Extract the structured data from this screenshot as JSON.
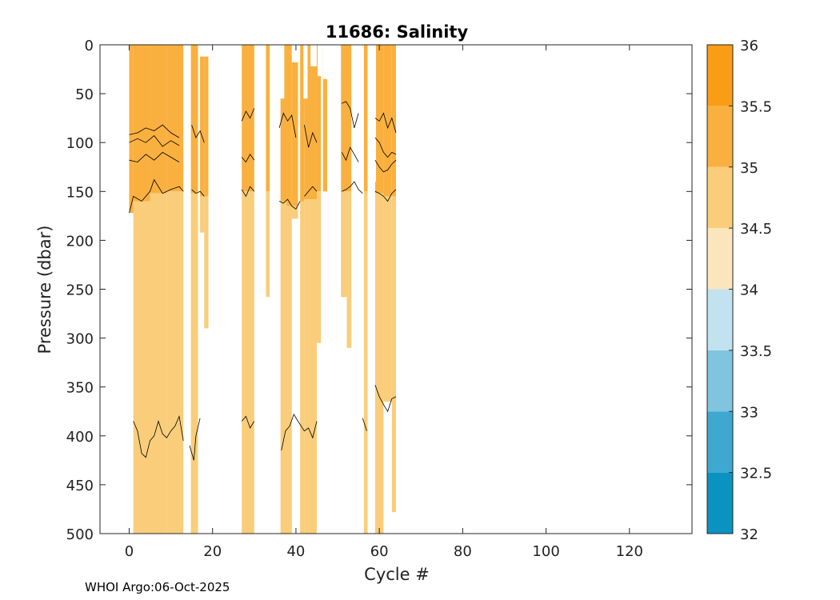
{
  "chart_data": {
    "type": "heatmap",
    "title": "11686:  Salinity",
    "xlabel": "Cycle #",
    "ylabel": "Pressure (dbar)",
    "xlim": [
      -7,
      135
    ],
    "ylim": [
      0,
      500
    ],
    "y_reversed": true,
    "x_ticks": [
      0,
      20,
      40,
      60,
      80,
      100,
      120
    ],
    "y_ticks": [
      0,
      50,
      100,
      150,
      200,
      250,
      300,
      350,
      400,
      450,
      500
    ],
    "colorbar": {
      "levels": [
        32,
        32.5,
        33,
        33.5,
        34,
        34.5,
        35,
        35.5,
        36
      ],
      "tick_labels": [
        "32",
        "32.5",
        "33",
        "33.5",
        "34",
        "34.5",
        "35",
        "35.5",
        "36"
      ],
      "colors": [
        "#0a93c1",
        "#3fa8d0",
        "#80c4df",
        "#c1e2ee",
        "#fbe5bc",
        "#f9cd7a",
        "#f9b03e",
        "#f99c16"
      ]
    },
    "profiles": [
      {
        "x0": 0,
        "x1": 1,
        "top": 0,
        "bottom": 172,
        "top_class": 6,
        "low_class": 5,
        "boundary": 172
      },
      {
        "x0": 1,
        "x1": 5,
        "top": 0,
        "bottom": 500,
        "top_class": 6,
        "low_class": 5,
        "boundary": 160
      },
      {
        "x0": 5,
        "x1": 9,
        "top": 0,
        "bottom": 500,
        "top_class": 6,
        "low_class": 5,
        "boundary": 152
      },
      {
        "x0": 9,
        "x1": 13,
        "top": 0,
        "bottom": 500,
        "top_class": 6,
        "low_class": 5,
        "boundary": 150
      },
      {
        "x0": 14.8,
        "x1": 16.5,
        "top": 0,
        "bottom": 500,
        "top_class": 6,
        "low_class": 5,
        "boundary": 152
      },
      {
        "x0": 17,
        "x1": 18,
        "top": 0,
        "bottom": 192,
        "top_class": 6,
        "low_class": 5,
        "boundary": 155
      },
      {
        "x0": 18,
        "x1": 19,
        "top": 0,
        "bottom": 290,
        "top_class": 6,
        "low_class": 5,
        "boundary": 155
      },
      {
        "x0": 27,
        "x1": 30,
        "top": 0,
        "bottom": 500,
        "top_class": 6,
        "low_class": 5,
        "boundary": 150
      },
      {
        "x0": 32.8,
        "x1": 33.7,
        "top": 0,
        "bottom": 258,
        "top_class": 6,
        "low_class": 5,
        "boundary": 150
      },
      {
        "x0": 36.3,
        "x1": 37.8,
        "top": 0,
        "bottom": 500,
        "top_class": 6,
        "low_class": 5,
        "boundary": 160
      },
      {
        "x0": 37.8,
        "x1": 39,
        "top": 0,
        "bottom": 500,
        "top_class": 6,
        "low_class": 5,
        "boundary": 165
      },
      {
        "x0": 39,
        "x1": 40.5,
        "top": 0,
        "bottom": 178,
        "top_class": 6,
        "low_class": 5,
        "boundary": 165
      },
      {
        "x0": 41,
        "x1": 42,
        "top": 0,
        "bottom": 500,
        "top_class": 6,
        "low_class": 5,
        "boundary": 160
      },
      {
        "x0": 42,
        "x1": 45,
        "top": 0,
        "bottom": 500,
        "top_class": 6,
        "low_class": 5,
        "boundary": 158
      },
      {
        "x0": 45,
        "x1": 46,
        "top": 0,
        "bottom": 305,
        "top_class": 6,
        "low_class": 5,
        "boundary": 150
      },
      {
        "x0": 46.5,
        "x1": 47.5,
        "top": 0,
        "bottom": 150,
        "top_class": 6,
        "low_class": 5,
        "boundary": 150
      },
      {
        "x0": 50.8,
        "x1": 52.2,
        "top": 0,
        "bottom": 258,
        "top_class": 6,
        "low_class": 5,
        "boundary": 150
      },
      {
        "x0": 52.2,
        "x1": 53.3,
        "top": 0,
        "bottom": 310,
        "top_class": 6,
        "low_class": 5,
        "boundary": 150
      },
      {
        "x0": 56.3,
        "x1": 57.2,
        "top": 0,
        "bottom": 500,
        "top_class": 6,
        "low_class": 5,
        "boundary": 150
      },
      {
        "x0": 59,
        "x1": 61,
        "top": 0,
        "bottom": 500,
        "top_class": 6,
        "low_class": 5,
        "boundary": 152
      },
      {
        "x0": 61,
        "x1": 63,
        "top": 0,
        "bottom": 365,
        "top_class": 6,
        "low_class": 5,
        "boundary": 155
      },
      {
        "x0": 63,
        "x1": 64,
        "top": 0,
        "bottom": 478,
        "top_class": 6,
        "low_class": 5,
        "boundary": 155
      }
    ],
    "white_gaps": [
      {
        "x0": 17,
        "x1": 19,
        "top": 0,
        "bottom": 12
      },
      {
        "x0": 39,
        "x1": 41,
        "top": 0,
        "bottom": 18
      },
      {
        "x0": 43.5,
        "x1": 45,
        "top": 0,
        "bottom": 22
      },
      {
        "x0": 46.5,
        "x1": 47.5,
        "top": 0,
        "bottom": 35
      },
      {
        "x0": 36.2,
        "x1": 37.2,
        "top": 0,
        "bottom": 55
      },
      {
        "x0": 41.8,
        "x1": 42.8,
        "top": 0,
        "bottom": 55
      },
      {
        "x0": 45.2,
        "x1": 46.3,
        "top": 0,
        "bottom": 32
      },
      {
        "x0": 47.3,
        "x1": 48.3,
        "top": 0,
        "bottom": 25
      },
      {
        "x0": 48.3,
        "x1": 49.3,
        "top": 0,
        "bottom": 60
      },
      {
        "x0": 58.2,
        "x1": 59.2,
        "top": 0,
        "bottom": 140
      }
    ],
    "contours_upper": [
      {
        "level": 35.5,
        "segments": [
          [
            [
              0,
              92
            ],
            [
              2,
              90
            ],
            [
              4,
              85
            ],
            [
              6,
              88
            ],
            [
              8,
              82
            ],
            [
              10,
              90
            ],
            [
              12,
              95
            ]
          ],
          [
            [
              0,
              100
            ],
            [
              2,
              96
            ],
            [
              4,
              100
            ],
            [
              6,
              93
            ],
            [
              8,
              104
            ],
            [
              10,
              98
            ],
            [
              12,
              103
            ]
          ],
          [
            [
              0,
              118
            ],
            [
              2,
              120
            ],
            [
              4,
              112
            ],
            [
              6,
              118
            ],
            [
              8,
              110
            ],
            [
              10,
              115
            ],
            [
              12,
              120
            ]
          ],
          [
            [
              15,
              82
            ],
            [
              16,
              95
            ],
            [
              17,
              88
            ],
            [
              18,
              100
            ]
          ],
          [
            [
              27,
              78
            ],
            [
              28,
              68
            ],
            [
              29,
              75
            ],
            [
              30,
              65
            ]
          ],
          [
            [
              27,
              115
            ],
            [
              28,
              120
            ],
            [
              29,
              112
            ],
            [
              30,
              118
            ]
          ],
          [
            [
              36,
              85
            ],
            [
              37,
              70
            ],
            [
              38,
              78
            ],
            [
              39,
              72
            ],
            [
              40,
              95
            ]
          ],
          [
            [
              42,
              82
            ],
            [
              43,
              105
            ],
            [
              44,
              90
            ],
            [
              45,
              100
            ]
          ],
          [
            [
              51,
              60
            ],
            [
              52,
              58
            ],
            [
              53,
              65
            ],
            [
              54,
              85
            ],
            [
              55,
              70
            ]
          ],
          [
            [
              51,
              110
            ],
            [
              52,
              118
            ],
            [
              53,
              105
            ],
            [
              54,
              112
            ],
            [
              55,
              120
            ]
          ],
          [
            [
              59,
              75
            ],
            [
              60,
              78
            ],
            [
              61,
              70
            ],
            [
              62,
              85
            ],
            [
              63,
              75
            ],
            [
              64,
              90
            ]
          ],
          [
            [
              59,
              95
            ],
            [
              60,
              100
            ],
            [
              61,
              110
            ],
            [
              62,
              115
            ],
            [
              63,
              110
            ],
            [
              64,
              112
            ]
          ],
          [
            [
              59,
              118
            ],
            [
              60,
              125
            ],
            [
              61,
              130
            ],
            [
              62,
              128
            ],
            [
              63,
              122
            ],
            [
              64,
              118
            ]
          ]
        ]
      }
    ],
    "contours_boundary": [
      {
        "level": 35,
        "segments": [
          [
            [
              0,
              172
            ],
            [
              1,
              155
            ],
            [
              3,
              160
            ],
            [
              5,
              150
            ],
            [
              6,
              138
            ],
            [
              8,
              152
            ],
            [
              10,
              148
            ],
            [
              12,
              145
            ],
            [
              13,
              150
            ]
          ],
          [
            [
              15,
              148
            ],
            [
              16,
              152
            ],
            [
              17,
              150
            ],
            [
              18,
              155
            ]
          ],
          [
            [
              27,
              148
            ],
            [
              28,
              155
            ],
            [
              29,
              145
            ],
            [
              30,
              150
            ]
          ],
          [
            [
              36,
              160
            ],
            [
              37,
              162
            ],
            [
              38,
              158
            ],
            [
              39,
              165
            ],
            [
              40,
              168
            ],
            [
              41,
              160
            ]
          ],
          [
            [
              42,
              155
            ],
            [
              43,
              150
            ],
            [
              44,
              145
            ],
            [
              45,
              150
            ]
          ],
          [
            [
              51,
              150
            ],
            [
              52,
              148
            ],
            [
              53,
              145
            ],
            [
              54,
              140
            ],
            [
              55,
              148
            ],
            [
              56,
              152
            ]
          ],
          [
            [
              59,
              150
            ],
            [
              60,
              152
            ],
            [
              61,
              155
            ],
            [
              62,
              160
            ],
            [
              63,
              152
            ],
            [
              64,
              148
            ]
          ]
        ]
      }
    ],
    "contours_lower": [
      {
        "level": 34.5,
        "segments": [
          [
            [
              1,
              385
            ],
            [
              2,
              395
            ],
            [
              3,
              418
            ],
            [
              4,
              422
            ],
            [
              5,
              405
            ],
            [
              6,
              400
            ],
            [
              7,
              385
            ],
            [
              8,
              398
            ],
            [
              9,
              402
            ],
            [
              10,
              395
            ],
            [
              11,
              390
            ],
            [
              12,
              380
            ],
            [
              13,
              405
            ]
          ],
          [
            [
              14.5,
              410
            ],
            [
              15.5,
              425
            ],
            [
              16,
              400
            ],
            [
              17,
              382
            ]
          ],
          [
            [
              27,
              385
            ],
            [
              28,
              380
            ],
            [
              29,
              392
            ],
            [
              30,
              385
            ]
          ],
          [
            [
              36.5,
              415
            ],
            [
              37.5,
              395
            ],
            [
              38.5,
              390
            ],
            [
              39.5,
              378
            ],
            [
              40.5,
              385
            ],
            [
              42,
              395
            ],
            [
              43,
              392
            ],
            [
              44,
              402
            ],
            [
              45,
              385
            ]
          ],
          [
            [
              56,
              382
            ],
            [
              57,
              395
            ]
          ],
          [
            [
              59,
              348
            ],
            [
              60,
              360
            ],
            [
              61,
              368
            ],
            [
              62,
              375
            ],
            [
              63,
              362
            ],
            [
              64,
              360
            ]
          ]
        ]
      }
    ]
  },
  "footer_text": "WHOI Argo:06-Oct-2025"
}
